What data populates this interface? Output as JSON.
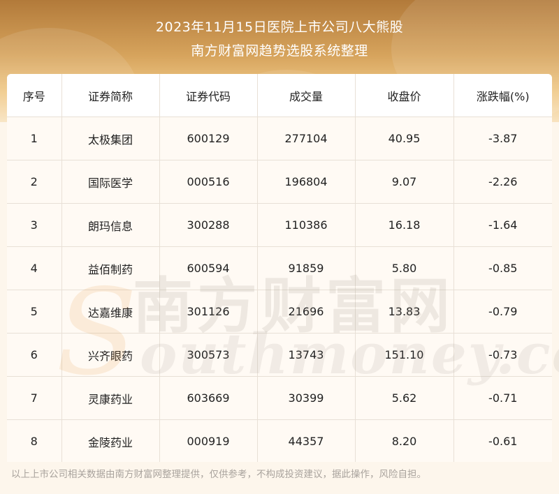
{
  "header": {
    "title_line1": "2023年11月15日医院上市公司八大熊股",
    "title_line2": "南方财富网趋势选股系统整理"
  },
  "table": {
    "columns": [
      "序号",
      "证券简称",
      "证券代码",
      "成交量",
      "收盘价",
      "涨跌幅(%)"
    ],
    "rows": [
      [
        "1",
        "太极集团",
        "600129",
        "277104",
        "40.95",
        "-3.87"
      ],
      [
        "2",
        "国际医学",
        "000516",
        "196804",
        "9.07",
        "-2.26"
      ],
      [
        "3",
        "朗玛信息",
        "300288",
        "110386",
        "16.18",
        "-1.64"
      ],
      [
        "4",
        "益佰制药",
        "600594",
        "91859",
        "5.80",
        "-0.85"
      ],
      [
        "5",
        "达嘉维康",
        "301126",
        "21696",
        "13.83",
        "-0.79"
      ],
      [
        "6",
        "兴齐眼药",
        "300573",
        "13743",
        "151.10",
        "-0.73"
      ],
      [
        "7",
        "灵康药业",
        "603669",
        "30399",
        "5.62",
        "-0.71"
      ],
      [
        "8",
        "金陵药业",
        "000919",
        "44357",
        "8.20",
        "-0.61"
      ]
    ]
  },
  "watermark": {
    "cn": "南方财富网",
    "en": "outhmoney.com",
    "s": "S"
  },
  "footer": {
    "disclaimer": "以上上市公司相关数据由南方财富网整理提供，仅供参考，不构成投资建议，据此操作，风险自担。"
  }
}
